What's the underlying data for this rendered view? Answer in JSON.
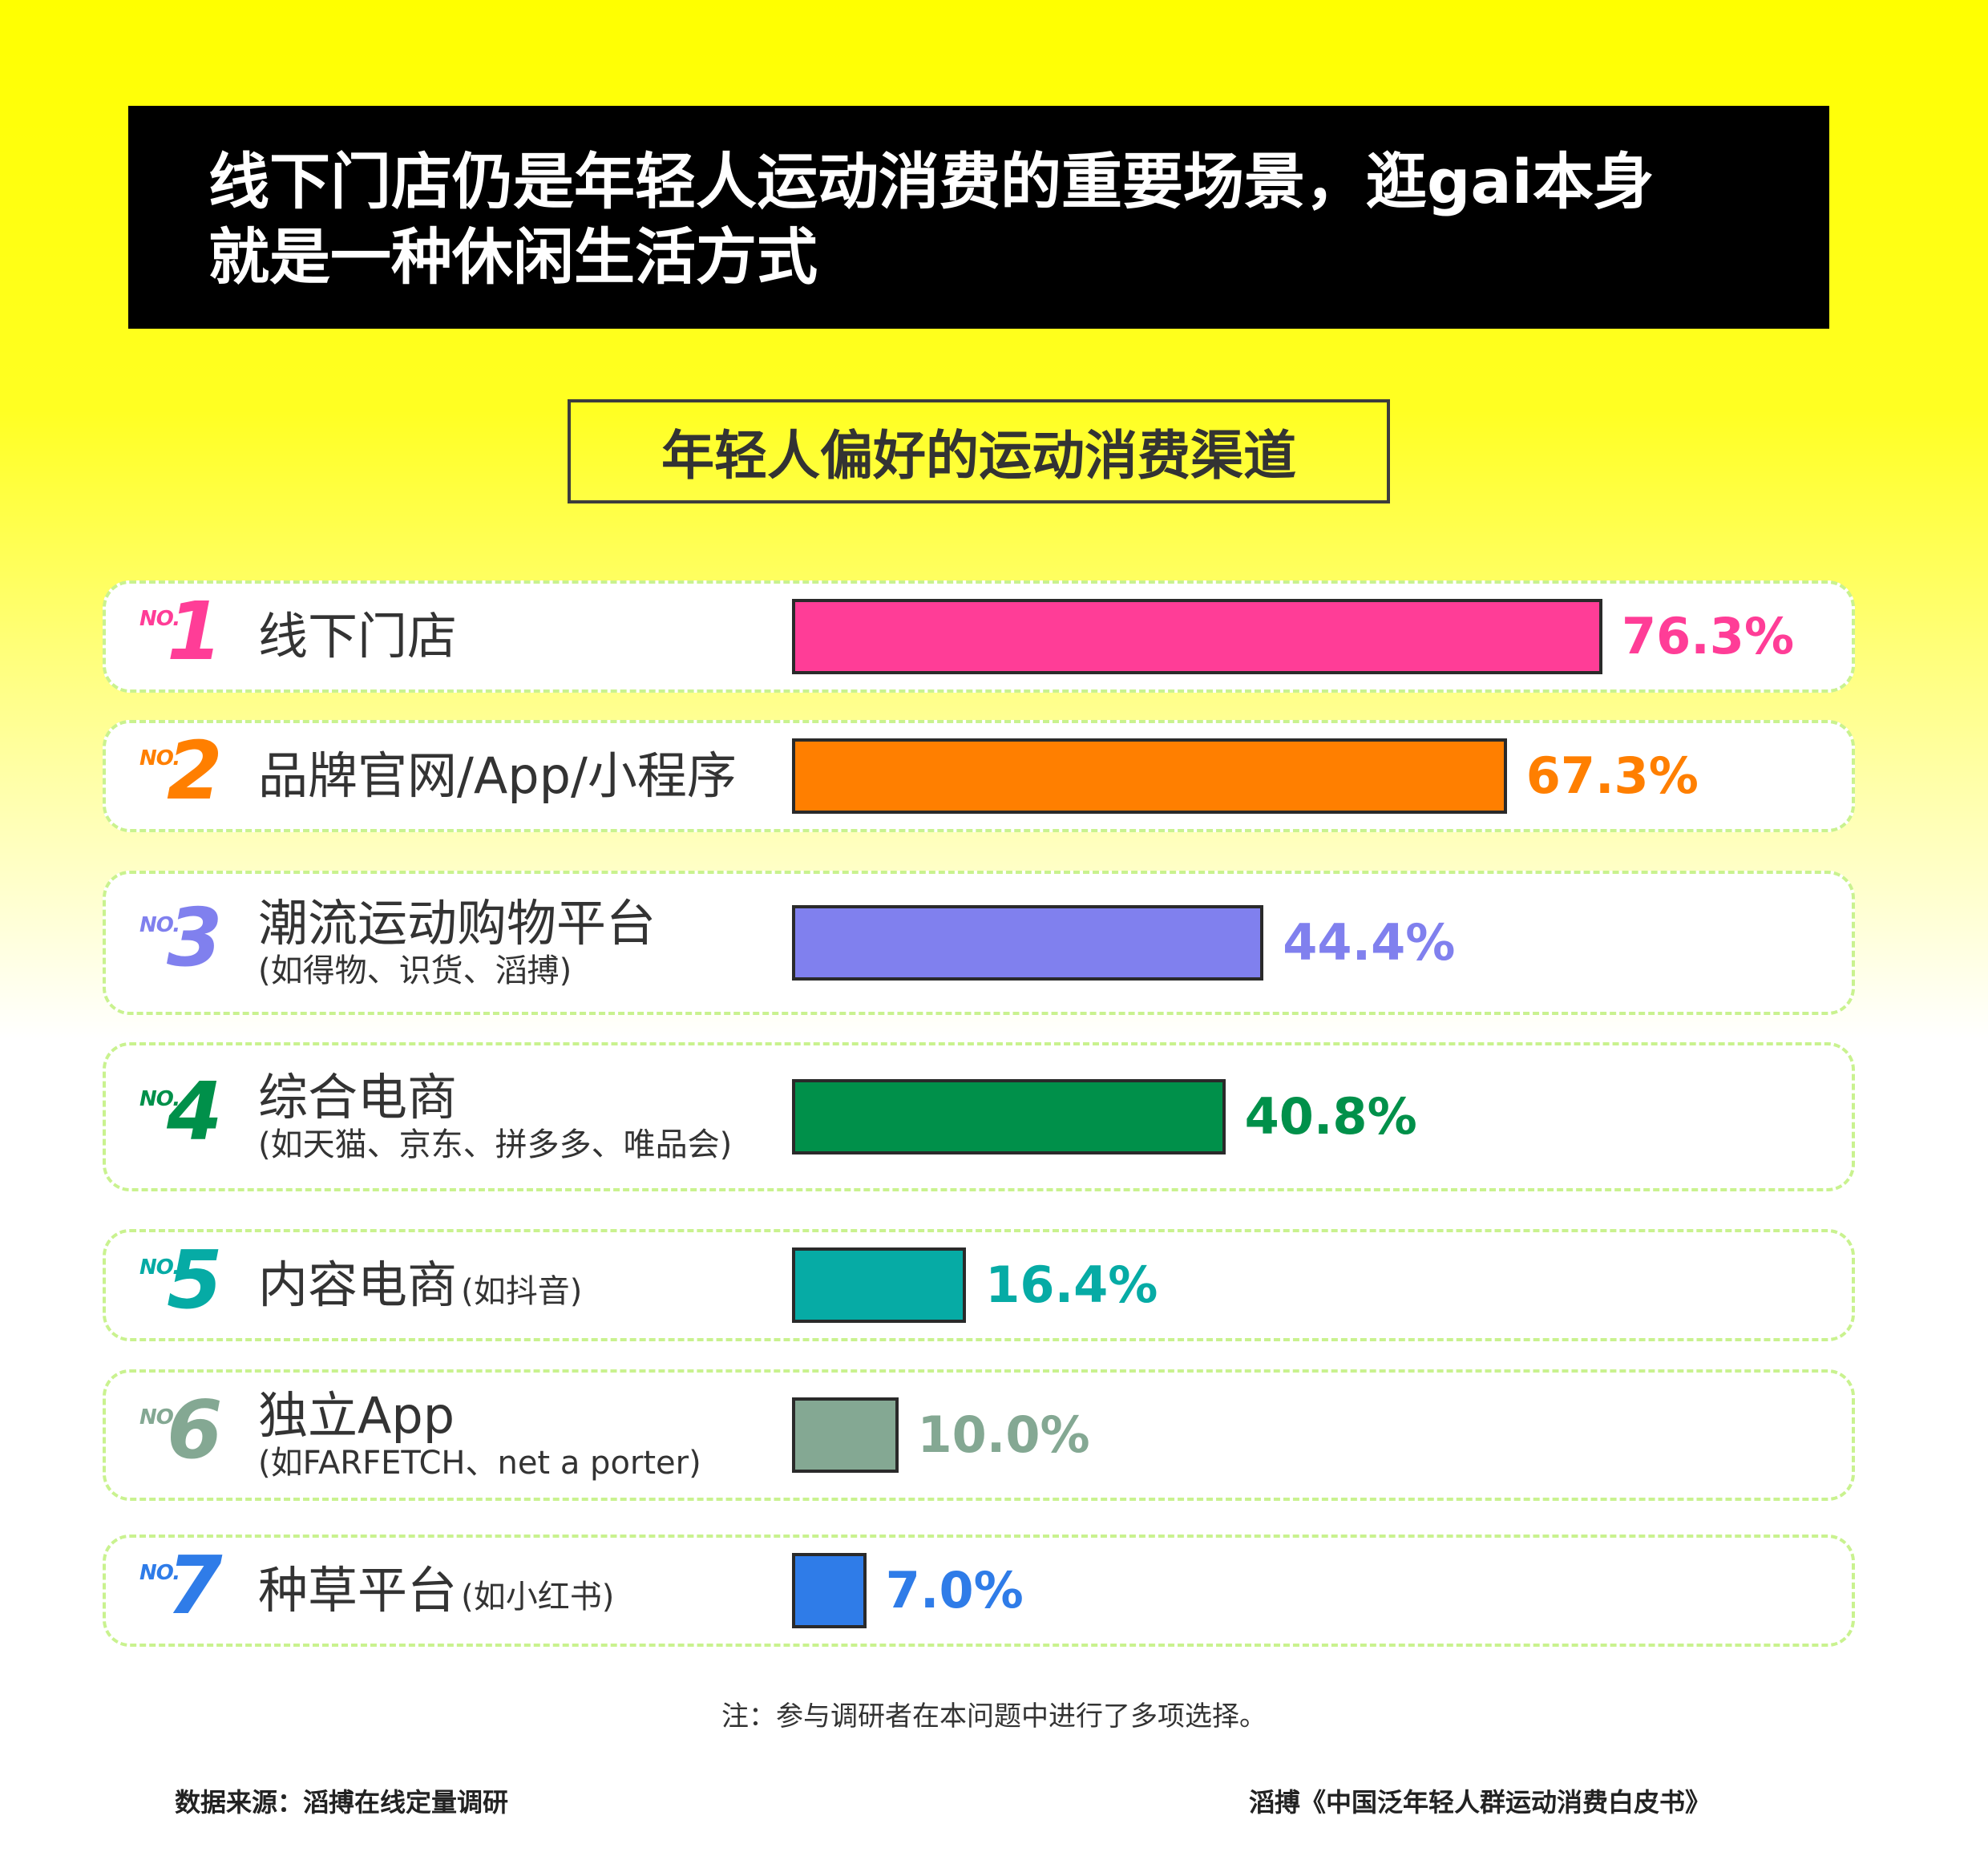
{
  "title": {
    "line1": "线下门店仍是年轻人运动消费的重要场景，逛gai本身",
    "line2": "就是一种休闲生活方式"
  },
  "subtitle": "年轻人偏好的运动消费渠道",
  "chart_data": {
    "type": "bar",
    "orientation": "horizontal",
    "title": "年轻人偏好的运动消费渠道",
    "value_unit": "%",
    "categories": [
      "线下门店",
      "品牌官网/App/小程序",
      "潮流运动购物平台 (如得物、识货、滔搏)",
      "综合电商 (如天猫、京东、拼多多、唯品会)",
      "内容电商 (如抖音)",
      "独立App (如FARFETCH、net a porter)",
      "种草平台 (如小红书)"
    ],
    "values": [
      76.3,
      67.3,
      44.4,
      40.8,
      16.4,
      10.0,
      7.0
    ],
    "colors": [
      "#ff3d97",
      "#ff7f00",
      "#8080ee",
      "#00904a",
      "#06aba5",
      "#84a893",
      "#2f7ce8"
    ],
    "xlim": [
      0,
      100
    ]
  },
  "rows": [
    {
      "no": "NO.",
      "rank": "1",
      "label": "线下门店",
      "sub": "",
      "sub_inline": "",
      "pct": "76.3%"
    },
    {
      "no": "NO.",
      "rank": "2",
      "label": "品牌官网/App/小程序",
      "sub": "",
      "sub_inline": "",
      "pct": "67.3%"
    },
    {
      "no": "NO.",
      "rank": "3",
      "label": "潮流运动购物平台",
      "sub": "(如得物、识货、滔搏)",
      "sub_inline": "",
      "pct": "44.4%"
    },
    {
      "no": "NO.",
      "rank": "4",
      "label": "综合电商",
      "sub": "(如天猫、京东、拼多多、唯品会)",
      "sub_inline": "",
      "pct": "40.8%"
    },
    {
      "no": "NO.",
      "rank": "5",
      "label": "内容电商",
      "sub": "",
      "sub_inline": "(如抖音)",
      "pct": "16.4%"
    },
    {
      "no": "NO.",
      "rank": "6",
      "label": "独立App",
      "sub": "(如FARFETCH、net a porter)",
      "sub_inline": "",
      "pct": "10.0%"
    },
    {
      "no": "NO.",
      "rank": "7",
      "label": "种草平台",
      "sub": "",
      "sub_inline": "(如小红书)",
      "pct": "7.0%"
    }
  ],
  "note": "注：参与调研者在本问题中进行了多项选择。",
  "footer": {
    "source": "数据来源：滔搏在线定量调研",
    "publication": "滔搏《中国泛年轻人群运动消费白皮书》"
  }
}
